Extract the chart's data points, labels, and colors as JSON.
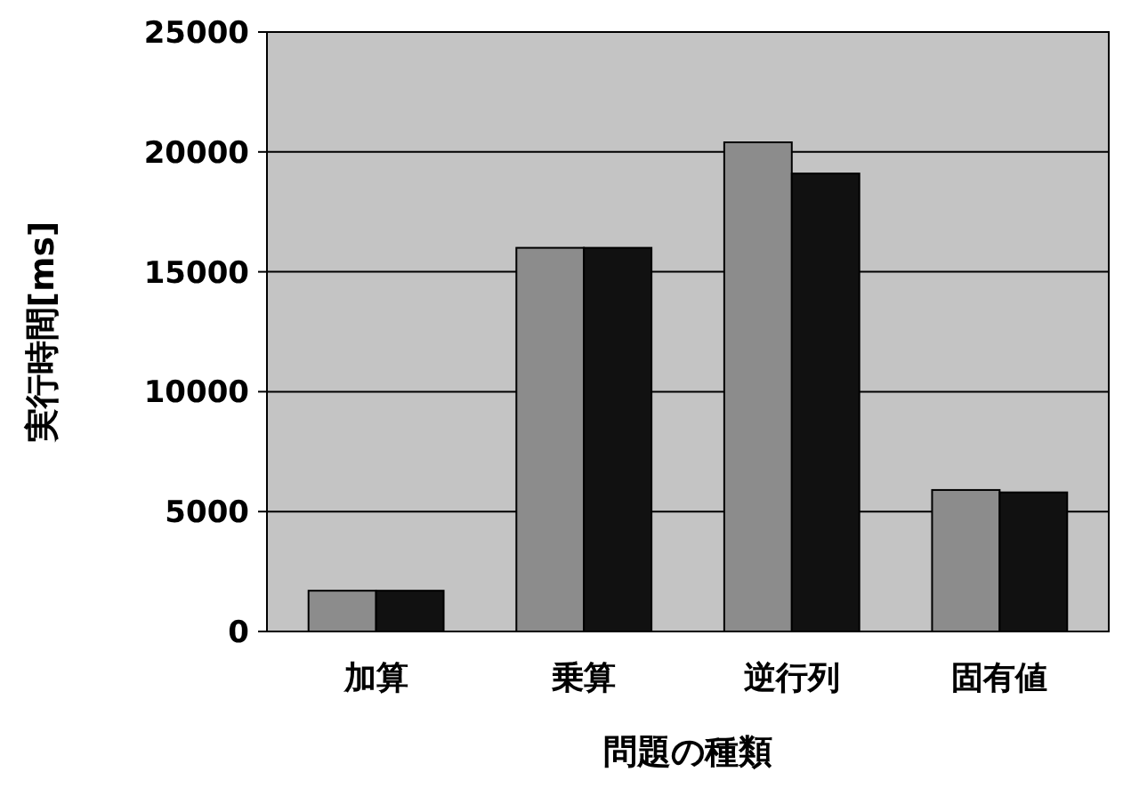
{
  "chart_data": {
    "type": "bar",
    "xlabel": "問題の種類",
    "ylabel": "実行時間[ms]",
    "categories": [
      "加算",
      "乗算",
      "逆行列",
      "固有値"
    ],
    "series": [
      {
        "color": "#8c8c8c",
        "values": [
          1700,
          16000,
          20400,
          5900
        ]
      },
      {
        "color": "#111111",
        "values": [
          1700,
          16000,
          19100,
          5800
        ]
      }
    ],
    "ylim": [
      0,
      25000
    ],
    "yticks": [
      0,
      5000,
      10000,
      15000,
      20000,
      25000
    ],
    "grid": "y"
  }
}
